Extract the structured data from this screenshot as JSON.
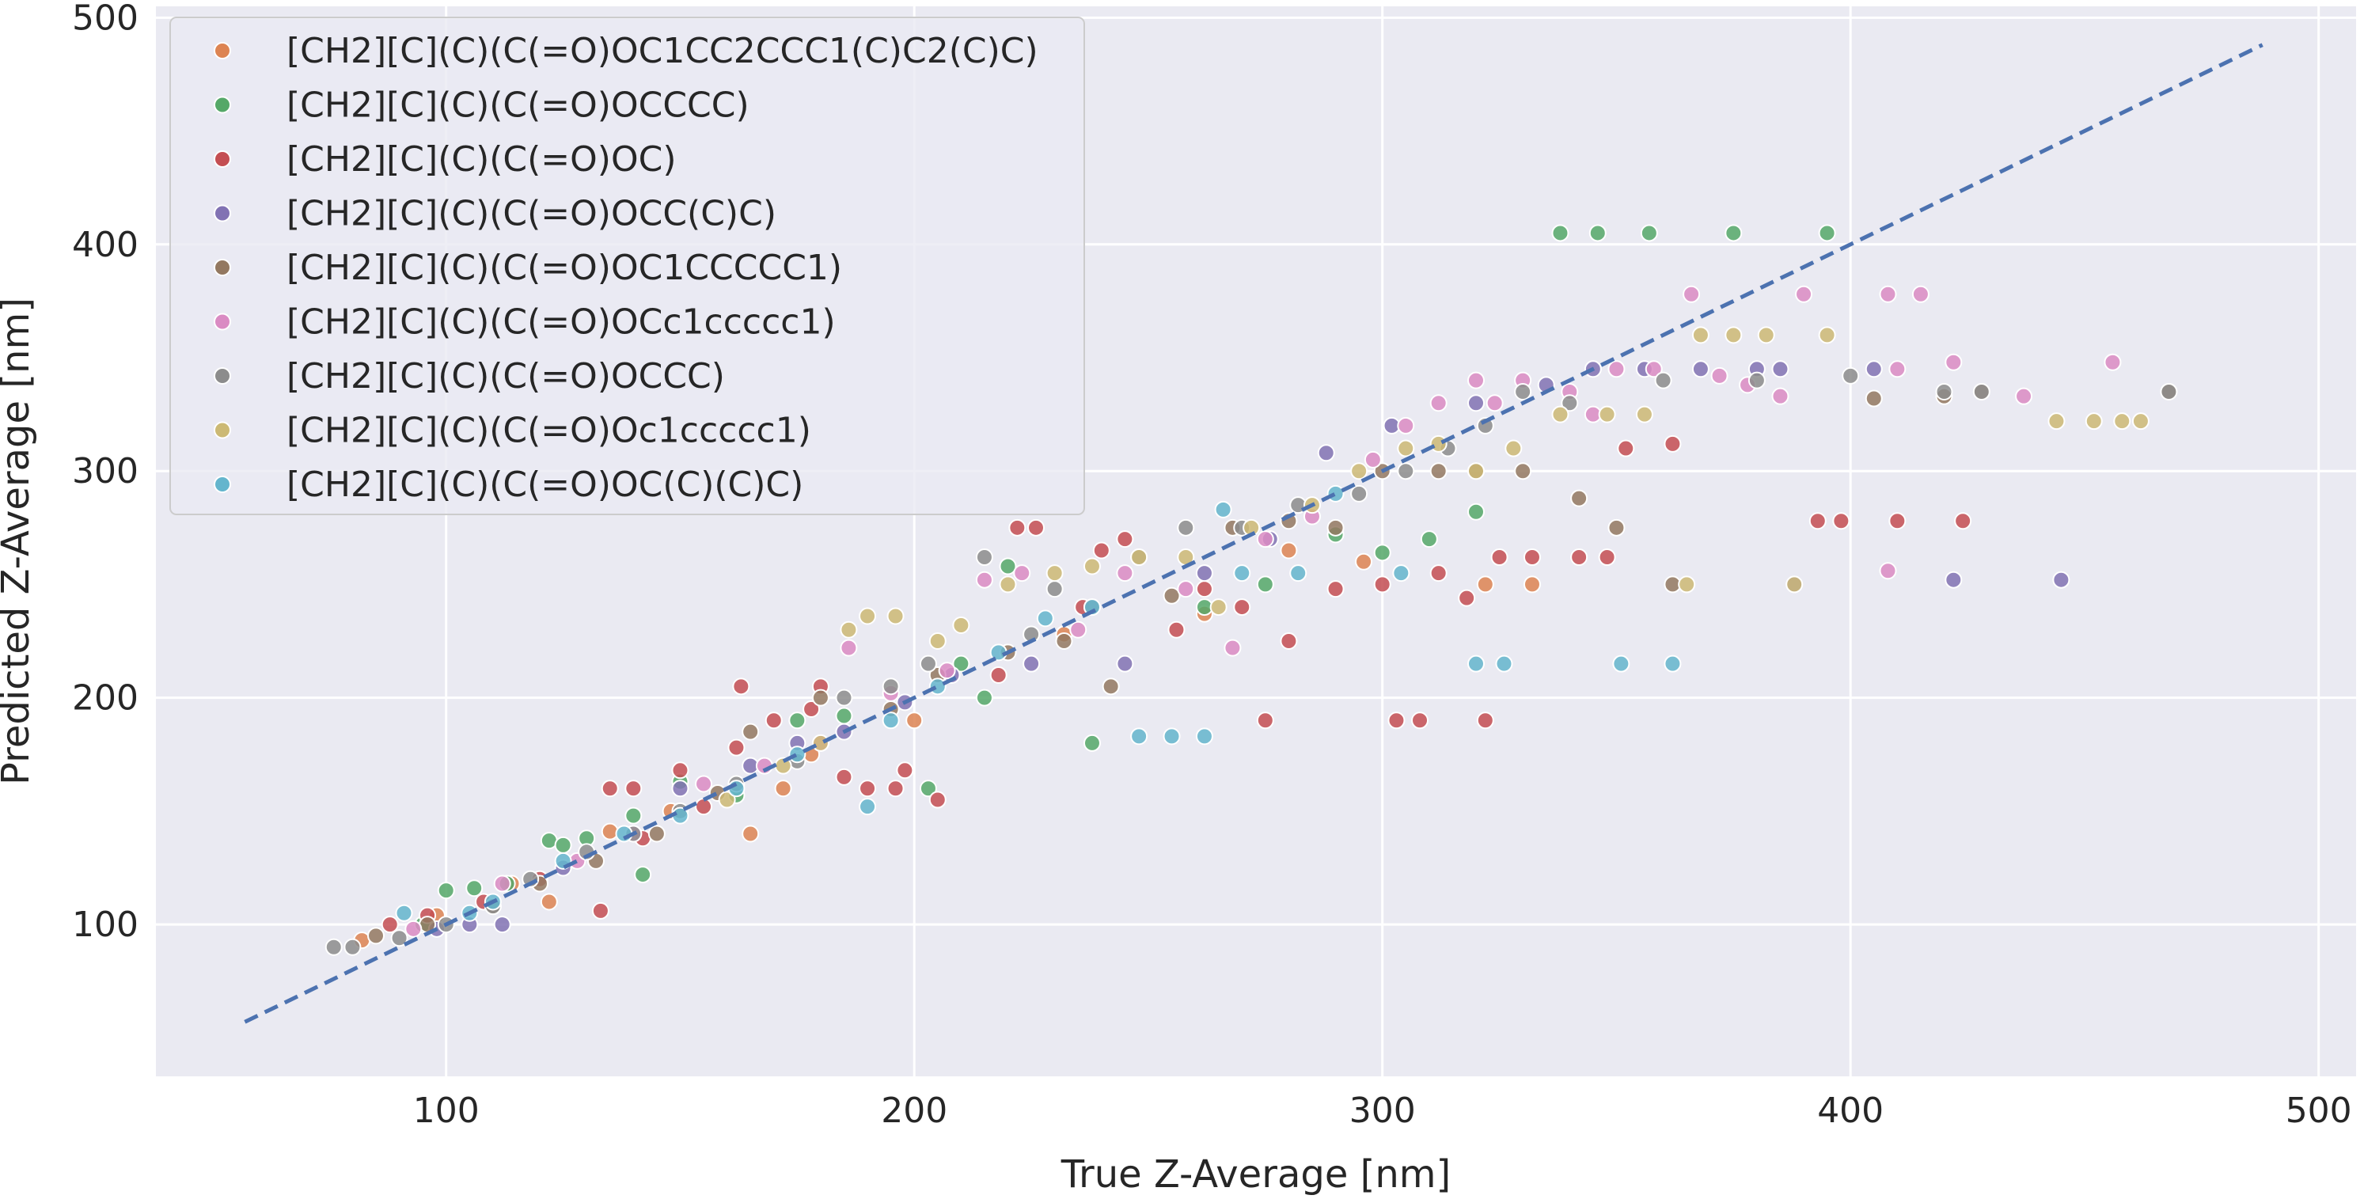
{
  "chart_data": {
    "type": "scatter",
    "title": "",
    "xlabel": "True Z-Average [nm]",
    "ylabel": "Predicted Z-Average [nm]",
    "xlim": [
      38,
      508
    ],
    "ylim": [
      33,
      505
    ],
    "xticks": [
      100,
      200,
      300,
      400,
      500
    ],
    "yticks": [
      100,
      200,
      300,
      400,
      500
    ],
    "grid": true,
    "legend_position": "top-left",
    "reference_line": {
      "from": [
        57,
        57
      ],
      "to": [
        488,
        488
      ],
      "style": "dashed",
      "color": "#4c72b0"
    },
    "series": [
      {
        "name": "[CH2][C](C)(C(=O)OC1CC2CCC1(C)C2(C)C)",
        "color": "#dd8452",
        "points": [
          [
            82,
            93
          ],
          [
            98,
            104
          ],
          [
            114,
            118
          ],
          [
            122,
            110
          ],
          [
            135,
            141
          ],
          [
            148,
            150
          ],
          [
            165,
            140
          ],
          [
            172,
            160
          ],
          [
            178,
            175
          ],
          [
            200,
            190
          ],
          [
            232,
            228
          ],
          [
            262,
            237
          ],
          [
            280,
            265
          ],
          [
            296,
            260
          ],
          [
            322,
            250
          ],
          [
            332,
            250
          ]
        ]
      },
      {
        "name": "[CH2][C](C)(C(=O)OCCCC)",
        "color": "#55a868",
        "points": [
          [
            95,
            100
          ],
          [
            100,
            115
          ],
          [
            106,
            116
          ],
          [
            113,
            118
          ],
          [
            122,
            137
          ],
          [
            125,
            135
          ],
          [
            130,
            138
          ],
          [
            140,
            148
          ],
          [
            142,
            122
          ],
          [
            150,
            163
          ],
          [
            162,
            157
          ],
          [
            175,
            190
          ],
          [
            185,
            192
          ],
          [
            203,
            160
          ],
          [
            210,
            215
          ],
          [
            215,
            200
          ],
          [
            220,
            258
          ],
          [
            238,
            180
          ],
          [
            262,
            240
          ],
          [
            275,
            250
          ],
          [
            290,
            272
          ],
          [
            300,
            264
          ],
          [
            310,
            270
          ],
          [
            320,
            282
          ],
          [
            338,
            405
          ],
          [
            346,
            405
          ],
          [
            357,
            405
          ],
          [
            375,
            405
          ],
          [
            395,
            405
          ]
        ]
      },
      {
        "name": "[CH2][C](C)(C(=O)OC)",
        "color": "#c44e52",
        "points": [
          [
            88,
            100
          ],
          [
            96,
            104
          ],
          [
            108,
            110
          ],
          [
            120,
            120
          ],
          [
            133,
            106
          ],
          [
            135,
            160
          ],
          [
            140,
            160
          ],
          [
            142,
            138
          ],
          [
            150,
            168
          ],
          [
            155,
            152
          ],
          [
            162,
            178
          ],
          [
            163,
            205
          ],
          [
            170,
            190
          ],
          [
            178,
            195
          ],
          [
            180,
            205
          ],
          [
            185,
            165
          ],
          [
            190,
            160
          ],
          [
            196,
            160
          ],
          [
            198,
            168
          ],
          [
            205,
            155
          ],
          [
            218,
            210
          ],
          [
            222,
            275
          ],
          [
            226,
            275
          ],
          [
            236,
            240
          ],
          [
            240,
            265
          ],
          [
            245,
            270
          ],
          [
            256,
            230
          ],
          [
            262,
            248
          ],
          [
            270,
            240
          ],
          [
            275,
            190
          ],
          [
            280,
            225
          ],
          [
            290,
            248
          ],
          [
            300,
            250
          ],
          [
            303,
            190
          ],
          [
            308,
            190
          ],
          [
            312,
            255
          ],
          [
            318,
            244
          ],
          [
            322,
            190
          ],
          [
            325,
            262
          ],
          [
            332,
            262
          ],
          [
            342,
            262
          ],
          [
            348,
            262
          ],
          [
            352,
            310
          ],
          [
            362,
            312
          ],
          [
            393,
            278
          ],
          [
            398,
            278
          ],
          [
            410,
            278
          ],
          [
            424,
            278
          ]
        ]
      },
      {
        "name": "[CH2][C](C)(C(=O)OCC(C)C)",
        "color": "#8172b3",
        "points": [
          [
            98,
            98
          ],
          [
            105,
            100
          ],
          [
            112,
            100
          ],
          [
            125,
            125
          ],
          [
            150,
            160
          ],
          [
            165,
            170
          ],
          [
            175,
            180
          ],
          [
            185,
            185
          ],
          [
            198,
            198
          ],
          [
            208,
            210
          ],
          [
            225,
            215
          ],
          [
            245,
            215
          ],
          [
            262,
            255
          ],
          [
            276,
            270
          ],
          [
            288,
            308
          ],
          [
            302,
            320
          ],
          [
            320,
            330
          ],
          [
            335,
            338
          ],
          [
            345,
            345
          ],
          [
            356,
            345
          ],
          [
            368,
            345
          ],
          [
            380,
            345
          ],
          [
            385,
            345
          ],
          [
            388,
            250
          ],
          [
            405,
            345
          ],
          [
            422,
            252
          ],
          [
            445,
            252
          ]
        ]
      },
      {
        "name": "[CH2][C](C)(C(=O)OC1CCCCC1)",
        "color": "#937860",
        "points": [
          [
            85,
            95
          ],
          [
            96,
            100
          ],
          [
            110,
            108
          ],
          [
            120,
            118
          ],
          [
            132,
            128
          ],
          [
            145,
            140
          ],
          [
            158,
            158
          ],
          [
            165,
            185
          ],
          [
            180,
            200
          ],
          [
            195,
            195
          ],
          [
            205,
            210
          ],
          [
            220,
            220
          ],
          [
            232,
            225
          ],
          [
            242,
            205
          ],
          [
            255,
            245
          ],
          [
            268,
            275
          ],
          [
            280,
            278
          ],
          [
            290,
            275
          ],
          [
            300,
            300
          ],
          [
            312,
            300
          ],
          [
            320,
            300
          ],
          [
            330,
            300
          ],
          [
            342,
            288
          ],
          [
            350,
            275
          ],
          [
            362,
            250
          ],
          [
            405,
            332
          ],
          [
            420,
            333
          ],
          [
            428,
            335
          ],
          [
            468,
            335
          ]
        ]
      },
      {
        "name": "[CH2][C](C)(C(=O)OCc1ccccc1)",
        "color": "#da8bc3",
        "points": [
          [
            93,
            98
          ],
          [
            112,
            118
          ],
          [
            128,
            128
          ],
          [
            140,
            140
          ],
          [
            155,
            162
          ],
          [
            168,
            170
          ],
          [
            180,
            180
          ],
          [
            186,
            222
          ],
          [
            195,
            202
          ],
          [
            207,
            212
          ],
          [
            215,
            252
          ],
          [
            223,
            255
          ],
          [
            235,
            230
          ],
          [
            245,
            255
          ],
          [
            258,
            248
          ],
          [
            268,
            222
          ],
          [
            275,
            270
          ],
          [
            285,
            280
          ],
          [
            298,
            305
          ],
          [
            305,
            320
          ],
          [
            312,
            330
          ],
          [
            320,
            340
          ],
          [
            324,
            330
          ],
          [
            330,
            340
          ],
          [
            340,
            335
          ],
          [
            345,
            325
          ],
          [
            350,
            345
          ],
          [
            358,
            345
          ],
          [
            366,
            378
          ],
          [
            372,
            342
          ],
          [
            378,
            338
          ],
          [
            385,
            333
          ],
          [
            390,
            378
          ],
          [
            408,
            378
          ],
          [
            408,
            256
          ],
          [
            415,
            378
          ],
          [
            410,
            345
          ],
          [
            422,
            348
          ],
          [
            437,
            333
          ],
          [
            456,
            348
          ]
        ]
      },
      {
        "name": "[CH2][C](C)(C(=O)OCCC)",
        "color": "#8c8c8c",
        "points": [
          [
            76,
            90
          ],
          [
            80,
            90
          ],
          [
            90,
            94
          ],
          [
            100,
            100
          ],
          [
            110,
            108
          ],
          [
            118,
            120
          ],
          [
            130,
            132
          ],
          [
            140,
            140
          ],
          [
            150,
            150
          ],
          [
            162,
            162
          ],
          [
            175,
            172
          ],
          [
            185,
            200
          ],
          [
            195,
            205
          ],
          [
            203,
            215
          ],
          [
            215,
            262
          ],
          [
            225,
            228
          ],
          [
            230,
            248
          ],
          [
            238,
            240
          ],
          [
            248,
            262
          ],
          [
            258,
            275
          ],
          [
            270,
            275
          ],
          [
            282,
            285
          ],
          [
            295,
            290
          ],
          [
            305,
            300
          ],
          [
            314,
            310
          ],
          [
            322,
            320
          ],
          [
            330,
            335
          ],
          [
            340,
            330
          ],
          [
            360,
            340
          ],
          [
            380,
            340
          ],
          [
            400,
            342
          ],
          [
            420,
            335
          ],
          [
            428,
            335
          ],
          [
            468,
            335
          ]
        ]
      },
      {
        "name": "[CH2][C](C)(C(=O)Oc1ccccc1)",
        "color": "#ccb974",
        "points": [
          [
            160,
            155
          ],
          [
            172,
            170
          ],
          [
            180,
            180
          ],
          [
            186,
            230
          ],
          [
            190,
            236
          ],
          [
            196,
            236
          ],
          [
            205,
            225
          ],
          [
            210,
            232
          ],
          [
            220,
            250
          ],
          [
            230,
            255
          ],
          [
            238,
            258
          ],
          [
            248,
            262
          ],
          [
            258,
            262
          ],
          [
            265,
            240
          ],
          [
            272,
            275
          ],
          [
            285,
            285
          ],
          [
            295,
            300
          ],
          [
            305,
            310
          ],
          [
            312,
            312
          ],
          [
            320,
            300
          ],
          [
            328,
            310
          ],
          [
            338,
            325
          ],
          [
            348,
            325
          ],
          [
            356,
            325
          ],
          [
            365,
            250
          ],
          [
            368,
            360
          ],
          [
            375,
            360
          ],
          [
            382,
            360
          ],
          [
            388,
            250
          ],
          [
            395,
            360
          ],
          [
            444,
            322
          ],
          [
            452,
            322
          ],
          [
            458,
            322
          ],
          [
            462,
            322
          ]
        ]
      },
      {
        "name": "[CH2][C](C)(C(=O)OC(C)(C)C)",
        "color": "#64b5cd",
        "points": [
          [
            91,
            105
          ],
          [
            105,
            105
          ],
          [
            110,
            110
          ],
          [
            125,
            128
          ],
          [
            138,
            140
          ],
          [
            150,
            148
          ],
          [
            162,
            160
          ],
          [
            175,
            175
          ],
          [
            190,
            152
          ],
          [
            195,
            190
          ],
          [
            205,
            205
          ],
          [
            218,
            220
          ],
          [
            228,
            235
          ],
          [
            238,
            240
          ],
          [
            248,
            183
          ],
          [
            255,
            183
          ],
          [
            262,
            183
          ],
          [
            266,
            283
          ],
          [
            270,
            255
          ],
          [
            282,
            255
          ],
          [
            290,
            290
          ],
          [
            304,
            255
          ],
          [
            320,
            215
          ],
          [
            326,
            215
          ],
          [
            351,
            215
          ],
          [
            362,
            215
          ]
        ]
      }
    ]
  }
}
